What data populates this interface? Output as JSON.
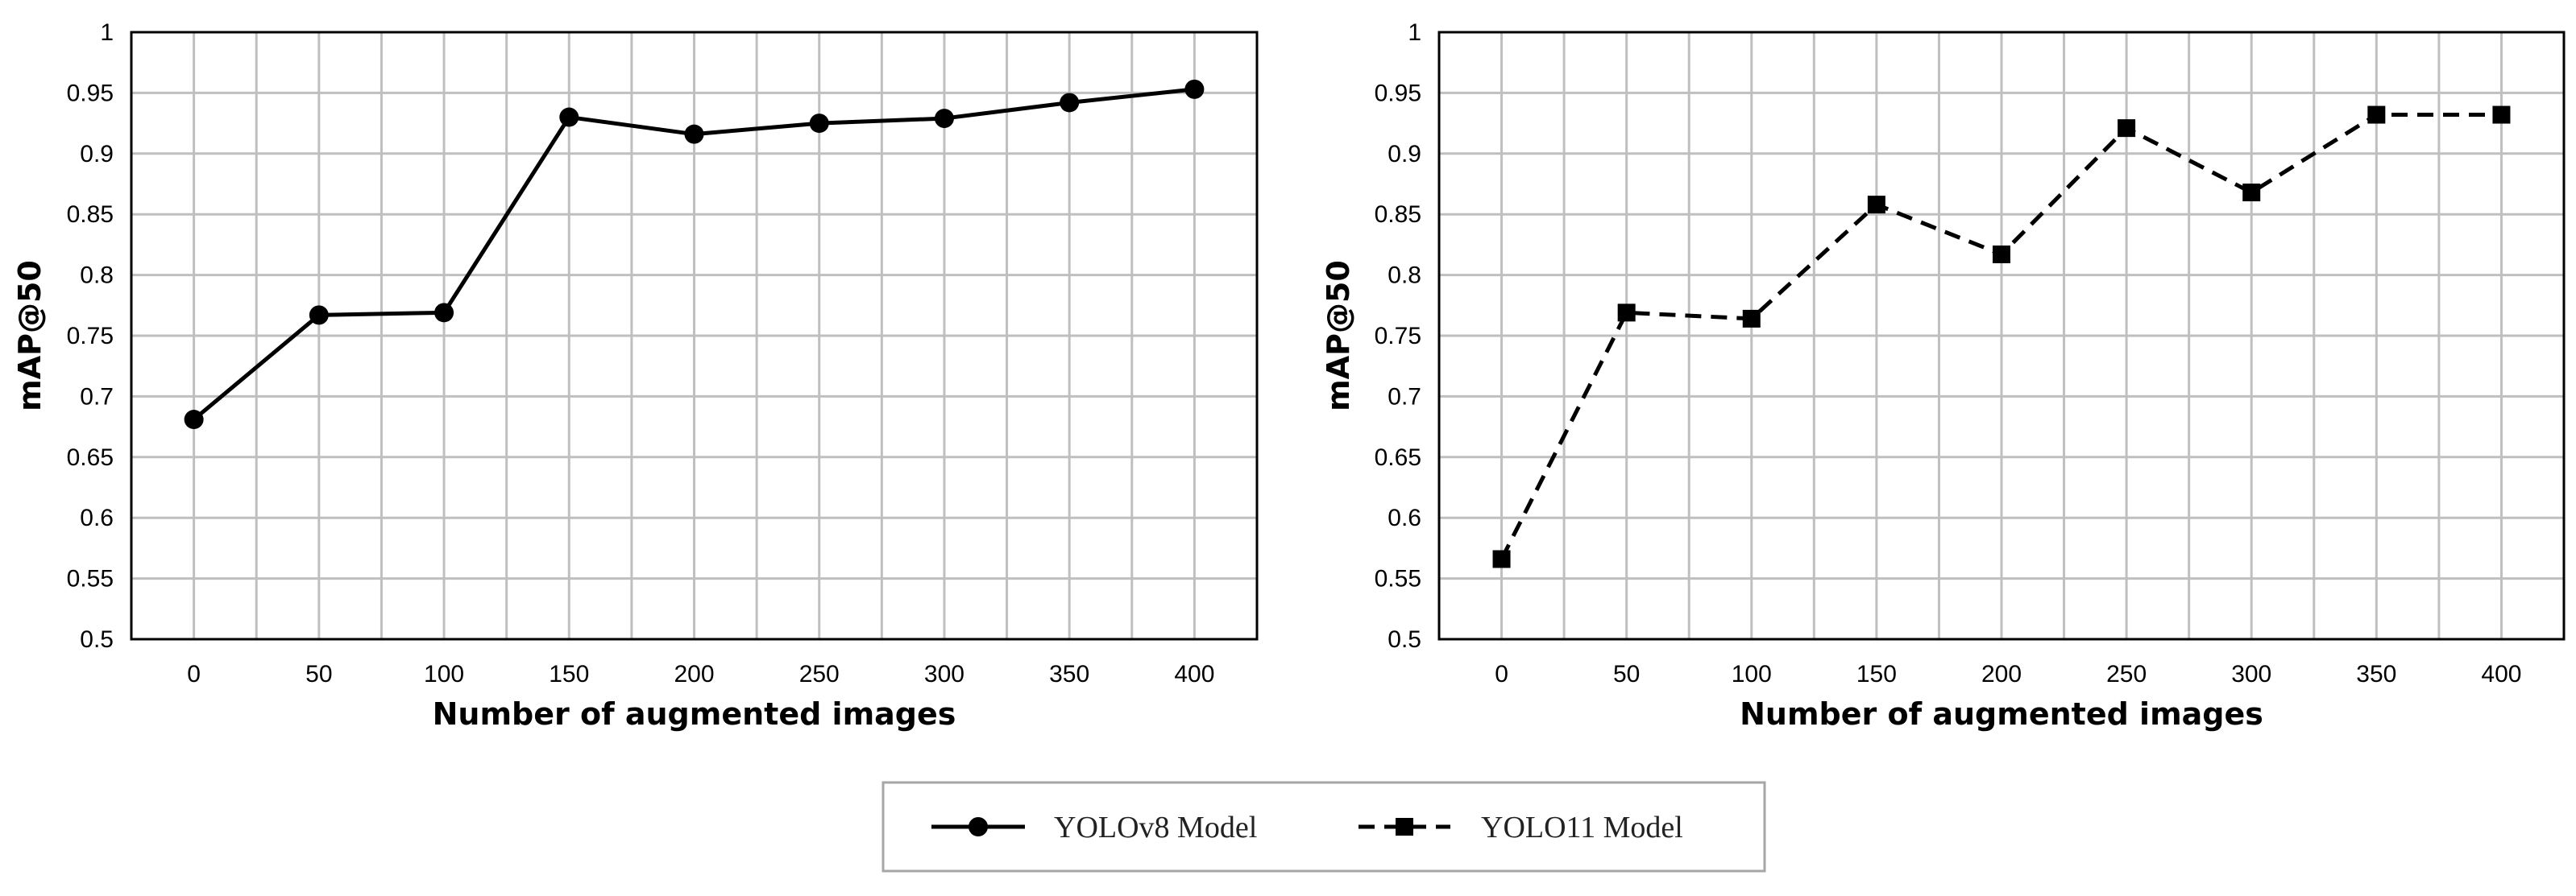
{
  "chart_data": [
    {
      "type": "line",
      "title": "",
      "xlabel": "Number of augmented images",
      "ylabel": "mAP@50",
      "x": [
        0,
        50,
        100,
        150,
        200,
        250,
        300,
        350,
        400
      ],
      "x_tick_labels": [
        "0",
        "50",
        "100",
        "150",
        "200",
        "250",
        "300",
        "350",
        "400"
      ],
      "y_tick_labels": [
        "0.5",
        "0.55",
        "0.6",
        "0.65",
        "0.7",
        "0.75",
        "0.8",
        "0.85",
        "0.9",
        "0.95",
        "1"
      ],
      "ylim": [
        0.5,
        1.0
      ],
      "grid": true,
      "series": [
        {
          "name": "YOLOv8 Model",
          "marker": "circle",
          "line_style": "solid",
          "values": [
            0.681,
            0.767,
            0.769,
            0.93,
            0.916,
            0.925,
            0.929,
            0.942,
            0.953
          ]
        }
      ]
    },
    {
      "type": "line",
      "title": "",
      "xlabel": "Number of augmented images",
      "ylabel": "mAP@50",
      "x": [
        0,
        50,
        100,
        150,
        200,
        250,
        300,
        350,
        400
      ],
      "x_tick_labels": [
        "0",
        "50",
        "100",
        "150",
        "200",
        "250",
        "300",
        "350",
        "400"
      ],
      "y_tick_labels": [
        "0.5",
        "0.55",
        "0.6",
        "0.65",
        "0.7",
        "0.75",
        "0.8",
        "0.85",
        "0.9",
        "0.95",
        "1"
      ],
      "ylim": [
        0.5,
        1.0
      ],
      "grid": true,
      "series": [
        {
          "name": "YOLO11 Model",
          "marker": "square",
          "line_style": "dashed",
          "values": [
            0.566,
            0.769,
            0.764,
            0.858,
            0.817,
            0.921,
            0.868,
            0.932,
            0.932
          ]
        }
      ]
    }
  ],
  "legend": {
    "position": "bottom-center",
    "items": [
      {
        "label": "YOLOv8 Model",
        "marker": "circle",
        "line_style": "solid"
      },
      {
        "label": "YOLO11 Model",
        "marker": "square",
        "line_style": "dashed"
      }
    ]
  },
  "colors": {
    "line": "#000000",
    "grid": "#bfbfbf",
    "frame": "#000000",
    "legend_border": "#a6a6a6"
  }
}
